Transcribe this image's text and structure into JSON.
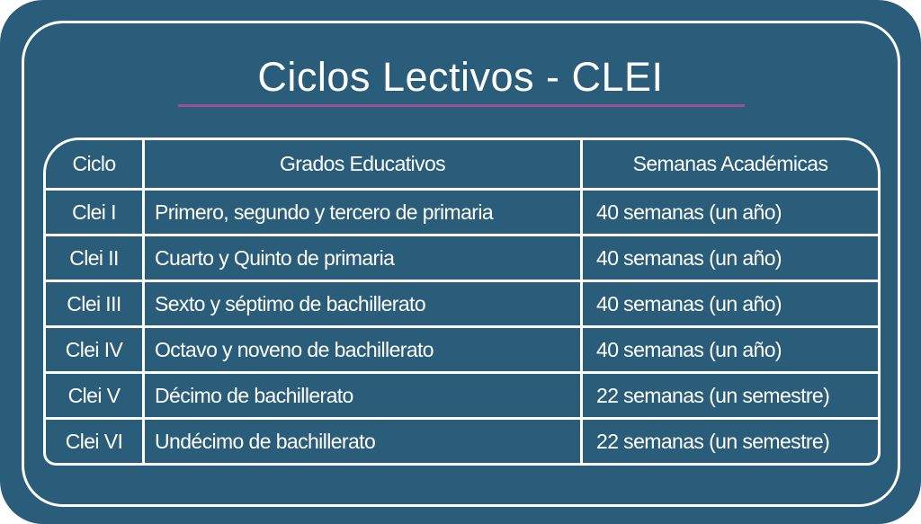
{
  "title": "Ciclos Lectivos - CLEI",
  "colors": {
    "background": "#2a5d79",
    "accent_rule": "#9b4f96",
    "text": "#ffffff"
  },
  "table": {
    "headers": [
      "Ciclo",
      "Grados Educativos",
      "Semanas Académicas"
    ],
    "rows": [
      [
        "Clei I",
        "Primero, segundo y tercero de primaria",
        "40 semanas (un año)"
      ],
      [
        "Clei II",
        "Cuarto y Quinto de primaria",
        "40 semanas (un año)"
      ],
      [
        "Clei III",
        "Sexto y séptimo de bachillerato",
        "40 semanas (un año)"
      ],
      [
        "Clei IV",
        "Octavo y noveno de bachillerato",
        "40 semanas (un año)"
      ],
      [
        "Clei V",
        "Décimo de bachillerato",
        "22 semanas (un semestre)"
      ],
      [
        "Clei VI",
        "Undécimo de bachillerato",
        "22 semanas (un semestre)"
      ]
    ]
  }
}
